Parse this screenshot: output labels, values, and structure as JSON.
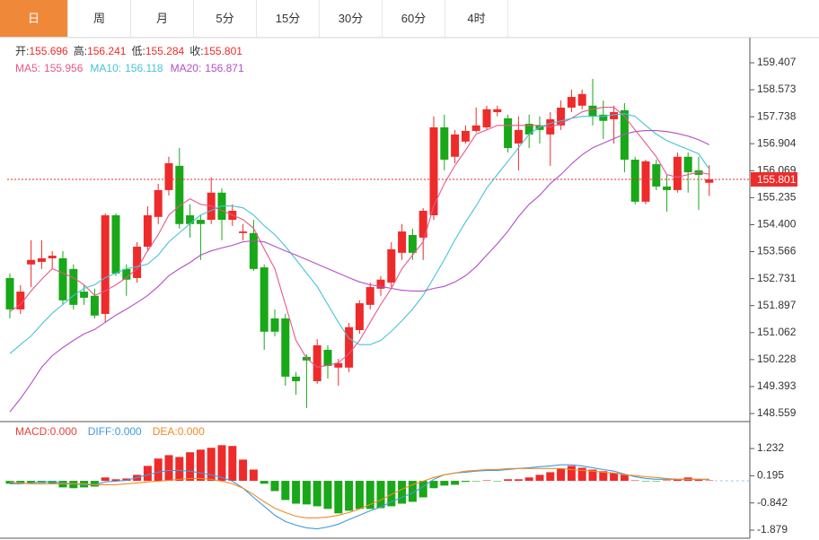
{
  "tabs": [
    "日",
    "周",
    "月",
    "5分",
    "15分",
    "30分",
    "60分",
    "4时"
  ],
  "active_tab": 0,
  "chart_data": [
    {
      "type": "candlestick",
      "up_color": "#ee2b2b",
      "down_color": "#18a818",
      "ylim": [
        148.31,
        160.1
      ],
      "yticks": [
        159.407,
        158.573,
        157.738,
        156.904,
        156.069,
        155.235,
        {
          "value": 154.4,
          "label": "154.400"
        },
        153.566,
        152.731,
        151.897,
        151.062,
        150.228,
        149.393,
        148.559
      ],
      "last_price": 155.801,
      "info": [
        {
          "name": "开:",
          "value": 155.696
        },
        {
          "name": "高:",
          "value": 156.241
        },
        {
          "name": "低:",
          "value": 155.284
        },
        {
          "name": "收:",
          "value": 155.801
        }
      ],
      "ohlc": [
        [
          152.75,
          152.89,
          151.5,
          151.78
        ],
        [
          151.78,
          152.53,
          151.64,
          152.33
        ],
        [
          153.17,
          153.92,
          152.47,
          153.31
        ],
        [
          153.25,
          153.92,
          153.03,
          153.36
        ],
        [
          153.36,
          153.58,
          153.03,
          153.44
        ],
        [
          153.36,
          153.58,
          151.92,
          152.06
        ],
        [
          153.03,
          153.17,
          151.78,
          151.92
        ],
        [
          152.33,
          152.53,
          151.92,
          152.14
        ],
        [
          152.2,
          152.42,
          151.5,
          151.59
        ],
        [
          151.64,
          154.75,
          151.36,
          154.69
        ],
        [
          154.69,
          154.75,
          152.81,
          152.89
        ],
        [
          153.03,
          153.17,
          152.2,
          152.7
        ],
        [
          152.75,
          153.86,
          152.61,
          153.72
        ],
        [
          153.72,
          154.97,
          153.58,
          154.69
        ],
        [
          154.64,
          155.66,
          154.42,
          155.47
        ],
        [
          155.47,
          156.5,
          155.3,
          156.3
        ],
        [
          156.22,
          156.77,
          154.28,
          154.42
        ],
        [
          154.69,
          155.03,
          154.0,
          154.42
        ],
        [
          154.55,
          154.69,
          153.31,
          154.42
        ],
        [
          154.55,
          155.86,
          154.42,
          155.39
        ],
        [
          155.39,
          155.52,
          153.92,
          154.55
        ],
        [
          154.55,
          155.03,
          154.36,
          154.83
        ],
        [
          154.14,
          154.42,
          153.92,
          154.19
        ],
        [
          154.14,
          154.55,
          152.97,
          153.03
        ],
        [
          153.08,
          153.17,
          150.53,
          151.09
        ],
        [
          151.5,
          151.78,
          150.95,
          151.09
        ],
        [
          151.5,
          151.64,
          149.42,
          149.7
        ],
        [
          149.7,
          149.84,
          149.14,
          149.56
        ],
        [
          150.31,
          150.39,
          148.73,
          150.2
        ],
        [
          149.56,
          150.86,
          149.48,
          150.67
        ],
        [
          150.53,
          150.67,
          149.64,
          150.03
        ],
        [
          149.98,
          150.25,
          149.42,
          150.12
        ],
        [
          149.98,
          151.36,
          149.84,
          151.23
        ],
        [
          151.14,
          152.06,
          151.03,
          151.97
        ],
        [
          151.92,
          152.61,
          151.78,
          152.47
        ],
        [
          152.42,
          152.81,
          152.2,
          152.7
        ],
        [
          152.61,
          153.86,
          152.47,
          153.64
        ],
        [
          153.53,
          154.42,
          153.31,
          154.19
        ],
        [
          154.08,
          154.28,
          153.31,
          153.53
        ],
        [
          154.0,
          154.91,
          153.31,
          154.83
        ],
        [
          154.69,
          157.75,
          154.55,
          157.41
        ],
        [
          157.41,
          157.8,
          156.08,
          156.41
        ],
        [
          156.5,
          157.33,
          156.3,
          157.19
        ],
        [
          156.97,
          157.47,
          156.91,
          157.3
        ],
        [
          157.3,
          158.02,
          157.25,
          157.47
        ],
        [
          157.41,
          158.08,
          157.33,
          157.97
        ],
        [
          157.88,
          158.08,
          157.75,
          157.97
        ],
        [
          157.69,
          157.8,
          156.63,
          156.77
        ],
        [
          156.91,
          157.75,
          156.08,
          157.33
        ],
        [
          157.52,
          157.8,
          156.77,
          157.19
        ],
        [
          157.47,
          157.75,
          156.91,
          157.33
        ],
        [
          157.19,
          157.88,
          156.22,
          157.66
        ],
        [
          157.47,
          158.24,
          157.33,
          158.02
        ],
        [
          158.02,
          158.58,
          157.88,
          158.35
        ],
        [
          158.08,
          158.58,
          157.97,
          158.44
        ],
        [
          158.08,
          158.91,
          157.47,
          157.75
        ],
        [
          157.8,
          158.24,
          157.05,
          157.61
        ],
        [
          157.66,
          158.08,
          156.91,
          157.88
        ],
        [
          157.94,
          158.16,
          156.02,
          156.41
        ],
        [
          156.41,
          156.5,
          155.03,
          155.11
        ],
        [
          155.11,
          156.41,
          155.03,
          156.36
        ],
        [
          156.27,
          156.41,
          155.47,
          155.58
        ],
        [
          155.58,
          155.94,
          154.8,
          155.47
        ],
        [
          155.47,
          156.63,
          155.39,
          156.5
        ],
        [
          156.5,
          156.63,
          155.39,
          156.02
        ],
        [
          156.08,
          156.5,
          154.86,
          155.94
        ],
        [
          155.696,
          156.241,
          155.284,
          155.801
        ]
      ],
      "series": [
        {
          "name": "MA5:",
          "color": "#e8578a",
          "current": 155.956,
          "values": [
            151.71,
            151.93,
            152.35,
            152.71,
            153.04,
            152.9,
            152.76,
            152.54,
            152.21,
            152.35,
            152.54,
            152.76,
            153.04,
            153.59,
            154.09,
            154.7,
            154.98,
            155.2,
            155.03,
            154.98,
            154.84,
            154.7,
            154.56,
            154.29,
            153.65,
            153.04,
            151.93,
            150.82,
            150.27,
            149.99,
            150.05,
            150.13,
            150.41,
            150.82,
            151.38,
            151.93,
            152.43,
            153.04,
            153.46,
            153.87,
            154.98,
            155.67,
            156.23,
            156.7,
            157.2,
            157.33,
            157.47,
            157.47,
            157.47,
            157.47,
            157.47,
            157.42,
            157.53,
            157.69,
            157.89,
            157.97,
            158.03,
            158.03,
            157.75,
            157.33,
            156.92,
            156.5,
            155.95,
            155.87,
            155.95,
            156.03,
            155.956
          ]
        },
        {
          "name": "MA10:",
          "color": "#45c3d8",
          "current": 156.118,
          "values": [
            150.41,
            150.69,
            150.96,
            151.32,
            151.66,
            151.93,
            152.21,
            152.43,
            152.54,
            152.76,
            152.9,
            153.04,
            153.1,
            153.18,
            153.46,
            153.87,
            154.15,
            154.43,
            154.7,
            154.84,
            154.98,
            154.98,
            154.92,
            154.7,
            154.37,
            154.09,
            153.73,
            153.32,
            152.9,
            152.49,
            151.93,
            151.38,
            150.88,
            150.69,
            150.69,
            150.82,
            151.1,
            151.43,
            151.79,
            152.21,
            152.76,
            153.32,
            153.93,
            154.48,
            154.98,
            155.53,
            155.95,
            156.36,
            156.78,
            157.2,
            157.42,
            157.53,
            157.61,
            157.69,
            157.75,
            157.75,
            157.75,
            157.8,
            157.83,
            157.75,
            157.47,
            157.2,
            157.0,
            156.86,
            156.73,
            156.59,
            156.118
          ]
        },
        {
          "name": "MA20:",
          "color": "#b44ec8",
          "current": 156.871,
          "values": [
            148.61,
            149.02,
            149.49,
            149.99,
            150.35,
            150.6,
            150.82,
            151.02,
            151.16,
            151.38,
            151.6,
            151.79,
            151.99,
            152.21,
            152.49,
            152.82,
            153.04,
            153.23,
            153.46,
            153.59,
            153.68,
            153.76,
            153.87,
            153.9,
            153.87,
            153.73,
            153.59,
            153.46,
            153.32,
            153.18,
            153.04,
            152.9,
            152.76,
            152.63,
            152.54,
            152.49,
            152.43,
            152.37,
            152.35,
            152.35,
            152.43,
            152.49,
            152.63,
            152.82,
            153.1,
            153.46,
            153.81,
            154.2,
            154.65,
            155.03,
            155.31,
            155.67,
            155.95,
            156.28,
            156.56,
            156.78,
            156.92,
            157.06,
            157.2,
            157.28,
            157.31,
            157.31,
            157.28,
            157.22,
            157.14,
            157.03,
            156.871
          ]
        }
      ]
    },
    {
      "type": "macd",
      "up_color": "#ee2b2b",
      "down_color": "#18a818",
      "ylim": [
        -2.187,
        2.191
      ],
      "yticks": [
        1.232,
        0.195,
        -0.842,
        -1.879
      ],
      "series": [
        {
          "name": "MACD:",
          "color": "#e8413a",
          "value_label": "0.000",
          "values": [
            -0.11,
            -0.11,
            -0.08,
            -0.08,
            -0.11,
            -0.25,
            -0.28,
            -0.25,
            -0.22,
            0.13,
            0.06,
            0.09,
            0.23,
            0.57,
            0.85,
            0.98,
            0.91,
            1.09,
            1.19,
            1.26,
            1.36,
            1.33,
            0.81,
            0.43,
            -0.11,
            -0.39,
            -0.73,
            -0.87,
            -0.9,
            -0.97,
            -1.07,
            -1.24,
            -1.14,
            -1.07,
            -1.07,
            -1.04,
            -0.97,
            -0.87,
            -0.8,
            -0.63,
            -0.28,
            -0.18,
            -0.15,
            -0.04,
            -0.01,
            0.02,
            -0.01,
            0.06,
            0.06,
            0.13,
            0.23,
            0.33,
            0.47,
            0.57,
            0.5,
            0.43,
            0.37,
            0.3,
            0.23,
            0.02,
            -0.01,
            -0.01,
            0.02,
            0.06,
            0.13,
            0.06,
            0.02
          ]
        },
        {
          "name": "DIFF:",
          "color": "#3d9be0",
          "value_label": "0.000",
          "values": [
            -0.11,
            -0.11,
            -0.08,
            -0.04,
            -0.04,
            -0.08,
            -0.11,
            -0.15,
            -0.15,
            -0.04,
            -0.01,
            0.02,
            0.13,
            0.23,
            0.33,
            0.4,
            0.4,
            0.37,
            0.3,
            0.23,
            0.13,
            -0.01,
            -0.28,
            -0.63,
            -0.97,
            -1.31,
            -1.55,
            -1.69,
            -1.79,
            -1.83,
            -1.76,
            -1.65,
            -1.48,
            -1.31,
            -1.14,
            -1.0,
            -0.8,
            -0.63,
            -0.46,
            -0.22,
            0.06,
            0.23,
            0.3,
            0.33,
            0.37,
            0.4,
            0.4,
            0.43,
            0.47,
            0.5,
            0.54,
            0.57,
            0.61,
            0.61,
            0.57,
            0.5,
            0.43,
            0.37,
            0.26,
            0.16,
            0.09,
            0.06,
            0.06,
            0.06,
            0.06,
            0.06,
            0.06
          ]
        },
        {
          "name": "DEA:",
          "color": "#f08a24",
          "value_label": "0.000",
          "values": [
            -0.04,
            -0.08,
            -0.11,
            -0.11,
            -0.11,
            -0.11,
            -0.11,
            -0.11,
            -0.15,
            -0.15,
            -0.15,
            -0.11,
            -0.08,
            -0.04,
            -0.01,
            0.02,
            0.06,
            0.09,
            0.09,
            0.06,
            -0.01,
            -0.11,
            -0.28,
            -0.52,
            -0.8,
            -1.04,
            -1.21,
            -1.35,
            -1.41,
            -1.41,
            -1.38,
            -1.31,
            -1.21,
            -1.07,
            -0.9,
            -0.73,
            -0.52,
            -0.32,
            -0.15,
            -0.01,
            0.13,
            0.23,
            0.3,
            0.37,
            0.4,
            0.43,
            0.43,
            0.47,
            0.47,
            0.47,
            0.47,
            0.47,
            0.47,
            0.43,
            0.4,
            0.37,
            0.33,
            0.3,
            0.23,
            0.2,
            0.16,
            0.13,
            0.09,
            0.06,
            0.06,
            0.06,
            0.06
          ]
        }
      ]
    }
  ]
}
